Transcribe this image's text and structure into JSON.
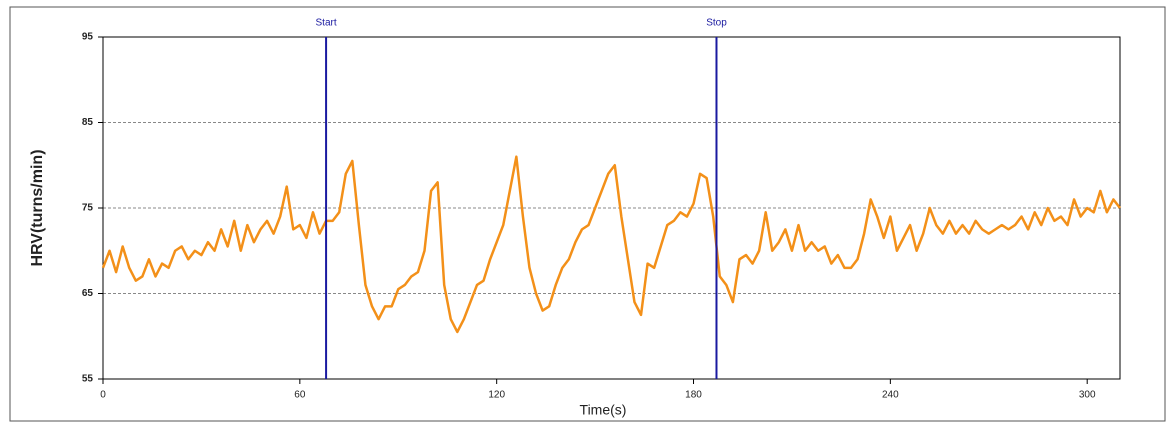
{
  "chart_data": {
    "type": "line",
    "x_label": "Time(s)",
    "y_label": "HRV(turns/min)",
    "x": [
      0,
      2,
      4,
      6,
      8,
      10,
      12,
      14,
      16,
      18,
      20,
      22,
      24,
      26,
      28,
      30,
      32,
      34,
      36,
      38,
      40,
      42,
      44,
      46,
      48,
      50,
      52,
      54,
      56,
      58,
      60,
      62,
      64,
      66,
      68,
      70,
      72,
      74,
      76,
      78,
      80,
      82,
      84,
      86,
      88,
      90,
      92,
      94,
      96,
      98,
      100,
      102,
      104,
      106,
      108,
      110,
      112,
      114,
      116,
      118,
      120,
      122,
      124,
      126,
      128,
      130,
      132,
      134,
      136,
      138,
      140,
      142,
      144,
      146,
      148,
      150,
      152,
      154,
      156,
      158,
      160,
      162,
      164,
      166,
      168,
      170,
      172,
      174,
      176,
      178,
      180,
      182,
      184,
      186,
      188,
      190,
      192,
      194,
      196,
      198,
      200,
      202,
      204,
      206,
      208,
      210,
      212,
      214,
      216,
      218,
      220,
      222,
      224,
      226,
      228,
      230,
      232,
      234,
      236,
      238,
      240,
      242,
      244,
      246,
      248,
      250,
      252,
      254,
      256,
      258,
      260,
      262,
      264,
      266,
      268,
      270,
      272,
      274,
      276,
      278,
      280,
      282,
      284,
      286,
      288,
      290,
      292,
      294,
      296,
      298,
      300,
      302,
      304,
      306,
      308,
      310
    ],
    "series": [
      {
        "color": "#f39019",
        "values": [
          68,
          70,
          67.5,
          70.5,
          68,
          66.5,
          67,
          69,
          67,
          68.5,
          68,
          70,
          70.5,
          69,
          70,
          69.5,
          71,
          70,
          72.5,
          70.5,
          73.5,
          70,
          73,
          71,
          72.5,
          73.5,
          72,
          74,
          77.5,
          72.5,
          73,
          71.5,
          74.5,
          72,
          73.5,
          73.5,
          74.5,
          79,
          80.5,
          73,
          66,
          63.5,
          62,
          63.5,
          63.5,
          65.5,
          66,
          67,
          67.5,
          70,
          77,
          78,
          66,
          62,
          60.5,
          62,
          64,
          66,
          66.5,
          69,
          71,
          73,
          77,
          81,
          74,
          68,
          65,
          63,
          63.5,
          66,
          68,
          69,
          71,
          72.5,
          73,
          75,
          77,
          79,
          80,
          74,
          69,
          64,
          62.5,
          68.5,
          68,
          70.5,
          73,
          73.5,
          74.5,
          74,
          75.5,
          79,
          78.5,
          74,
          67,
          66,
          64,
          69,
          69.5,
          68.5,
          70,
          74.5,
          70,
          71,
          72.5,
          70,
          73,
          70,
          71,
          70,
          70.5,
          68.5,
          69.5,
          68,
          68,
          69,
          72,
          76,
          74,
          71.5,
          74,
          70,
          71.5,
          73,
          70,
          72,
          75,
          73,
          72,
          73.5,
          72,
          73,
          72,
          73.5,
          72.5,
          72,
          72.5,
          73,
          72.5,
          73,
          74,
          72.5,
          74.5,
          73,
          75,
          73.5,
          74,
          73,
          76,
          74,
          75,
          74.5,
          77,
          74.5,
          76,
          75
        ]
      }
    ],
    "annotations": [
      {
        "label": "Start",
        "x": 68,
        "color": "#1a1aa0"
      },
      {
        "label": "Stop",
        "x": 187,
        "color": "#1a1aa0"
      }
    ],
    "xlim": [
      0,
      310
    ],
    "xticks": [
      0,
      60,
      120,
      180,
      240,
      300
    ],
    "ylim": [
      55,
      95
    ],
    "yticks": [
      55,
      65,
      75,
      85,
      95
    ],
    "grid": true
  }
}
